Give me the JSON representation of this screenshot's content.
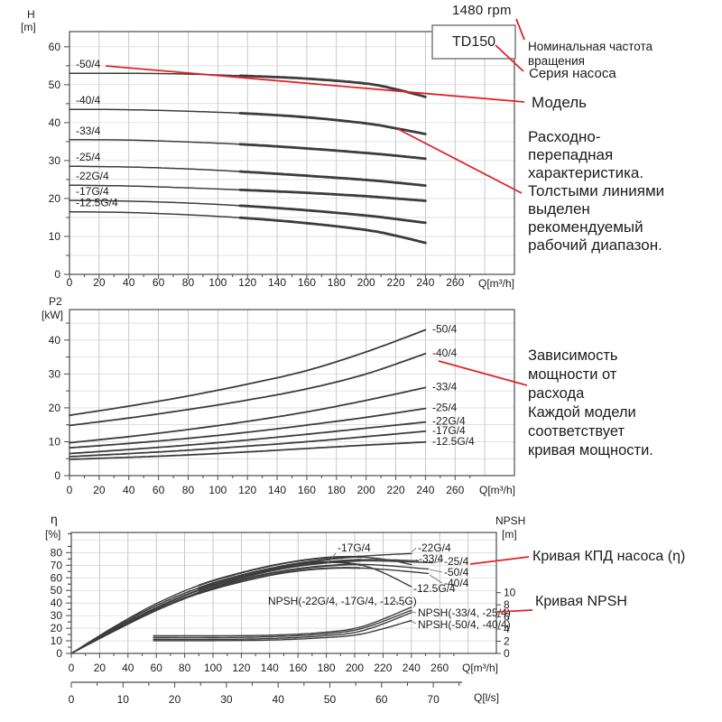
{
  "colors": {
    "accent": "#e02228",
    "curve": "#3c3c3c",
    "grid_v": "#bbbbbb",
    "grid_h": "#cfcfcf",
    "axis": "#4a4a4a",
    "text": "#1c1c1c",
    "box_border": "#7a7a7a"
  },
  "header": {
    "rpm": "1480 rpm",
    "series_box": "TD150"
  },
  "annotations": {
    "rpm_note": "Номинальная частота\nвращения",
    "series_note": "Серия насоса",
    "model_note": "Модель",
    "hq_note": "Расходно-\nперепадная\nхарактеристика.\nТолстыми линиями\nвыделен\nрекомендуемый\nрабочий диапазон.",
    "power_note": "Зависимость\nмощности от\nрасхода\nКаждой модели\nсоответствует\nкривая мощности.",
    "eff_note": "Кривая КПД насоса (η)",
    "npsh_note": "Кривая NPSH"
  },
  "chart_data": [
    {
      "id": "head-flow",
      "type": "line",
      "ylabel": "H",
      "y_unit": "[m]",
      "xlabel": "Q[m³/h]",
      "xlim": [
        0,
        300
      ],
      "ylim": [
        0,
        64
      ],
      "xticks": [
        0,
        20,
        40,
        60,
        80,
        100,
        120,
        140,
        160,
        180,
        200,
        220,
        240,
        260
      ],
      "yticks": [
        0,
        10,
        20,
        30,
        40,
        50,
        60
      ],
      "grid": true,
      "thick_q_range": [
        115,
        240
      ],
      "series": [
        {
          "name": "-50/4",
          "x": [
            0,
            40,
            80,
            120,
            160,
            200,
            220,
            240
          ],
          "y": [
            53,
            53,
            52.8,
            52.3,
            51.6,
            50.3,
            48.8,
            46.8
          ]
        },
        {
          "name": "-40/4",
          "x": [
            0,
            40,
            80,
            120,
            160,
            200,
            220,
            240
          ],
          "y": [
            43.5,
            43.4,
            43.0,
            42.4,
            41.4,
            39.8,
            38.5,
            37.0
          ]
        },
        {
          "name": "-33/4",
          "x": [
            0,
            40,
            80,
            120,
            160,
            200,
            220,
            240
          ],
          "y": [
            35.5,
            35.4,
            34.9,
            34.2,
            33.2,
            32.0,
            31.3,
            30.5
          ]
        },
        {
          "name": "-25/4",
          "x": [
            0,
            40,
            80,
            120,
            160,
            200,
            220,
            240
          ],
          "y": [
            28.5,
            28.3,
            27.8,
            27.0,
            26.0,
            24.9,
            24.2,
            23.4
          ]
        },
        {
          "name": "-22G/4",
          "x": [
            0,
            40,
            80,
            120,
            160,
            200,
            220,
            240
          ],
          "y": [
            23.5,
            23.3,
            22.8,
            22.2,
            21.5,
            20.6,
            20.0,
            19.4
          ]
        },
        {
          "name": "-17G/4",
          "x": [
            0,
            40,
            80,
            120,
            160,
            200,
            220,
            240
          ],
          "y": [
            19.5,
            19.3,
            18.8,
            18.0,
            16.9,
            15.5,
            14.6,
            13.6
          ]
        },
        {
          "name": "-12.5G/4",
          "x": [
            0,
            40,
            80,
            120,
            160,
            200,
            220,
            240
          ],
          "y": [
            16.5,
            16.3,
            15.7,
            14.8,
            13.5,
            11.7,
            10.2,
            8.3
          ]
        }
      ]
    },
    {
      "id": "power-flow",
      "type": "line",
      "ylabel": "P2",
      "y_unit": "[kW]",
      "xlabel": "Q[m³/h]",
      "xlim": [
        0,
        300
      ],
      "ylim": [
        0,
        49
      ],
      "xticks": [
        0,
        20,
        40,
        60,
        80,
        100,
        120,
        140,
        160,
        180,
        200,
        220,
        240,
        260
      ],
      "yticks": [
        0,
        10,
        20,
        30,
        40
      ],
      "grid": true,
      "series": [
        {
          "name": "-50/4",
          "x": [
            0,
            40,
            80,
            120,
            160,
            200,
            240
          ],
          "y": [
            17.8,
            20.5,
            23.5,
            27.0,
            31.0,
            36.5,
            43.0
          ]
        },
        {
          "name": "-40/4",
          "x": [
            0,
            40,
            80,
            120,
            160,
            200,
            240
          ],
          "y": [
            14.8,
            17.0,
            19.5,
            22.3,
            25.6,
            30.0,
            36.0
          ]
        },
        {
          "name": "-33/4",
          "x": [
            0,
            40,
            80,
            120,
            160,
            200,
            240
          ],
          "y": [
            9.7,
            11.5,
            13.6,
            16.0,
            18.8,
            22.2,
            26.0
          ]
        },
        {
          "name": "-25/4",
          "x": [
            0,
            40,
            80,
            120,
            160,
            200,
            240
          ],
          "y": [
            8.2,
            9.5,
            11.0,
            12.8,
            14.9,
            17.2,
            19.8
          ]
        },
        {
          "name": "-22G/4",
          "x": [
            0,
            40,
            80,
            120,
            160,
            200,
            240
          ],
          "y": [
            6.5,
            7.7,
            9.0,
            10.5,
            12.2,
            14.0,
            15.8
          ]
        },
        {
          "name": "-17G/4",
          "x": [
            0,
            40,
            80,
            120,
            160,
            200,
            240
          ],
          "y": [
            5.6,
            6.5,
            7.5,
            8.7,
            10.0,
            11.5,
            13.1
          ]
        },
        {
          "name": "-12.5G/4",
          "x": [
            0,
            40,
            80,
            120,
            160,
            200,
            240
          ],
          "y": [
            4.8,
            5.4,
            6.1,
            7.0,
            8.0,
            9.0,
            9.9
          ]
        }
      ]
    },
    {
      "id": "efficiency-npsh",
      "type": "line",
      "ylabel": "η",
      "y_unit": "[%]",
      "xlabel": "Q[m³/h]",
      "x2label": "Q[l/s]",
      "y2label": "NPSH",
      "y2_unit": "[m]",
      "xlim": [
        0,
        300
      ],
      "ylim": [
        0,
        96
      ],
      "y2lim": [
        0,
        19.9
      ],
      "x2lim": [
        0,
        82
      ],
      "xticks": [
        0,
        20,
        40,
        60,
        80,
        100,
        120,
        140,
        160,
        180,
        200,
        220,
        240,
        260
      ],
      "yticks": [
        0,
        10,
        20,
        30,
        40,
        50,
        60,
        70,
        80
      ],
      "x2ticks": [
        0,
        10,
        20,
        30,
        40,
        50,
        60,
        70
      ],
      "y2ticks": [
        0,
        2,
        4,
        6,
        8,
        10
      ],
      "grid": true,
      "series": [
        {
          "name": "-22G/4",
          "x": [
            0,
            30,
            60,
            90,
            120,
            150,
            180,
            210,
            240
          ],
          "y": [
            0,
            20,
            38,
            52,
            62,
            69.5,
            74.5,
            77.5,
            79.3
          ]
        },
        {
          "name": "-17G/4",
          "x": [
            0,
            30,
            60,
            90,
            120,
            150,
            180,
            205,
            225,
            240
          ],
          "y": [
            0,
            21,
            39.5,
            54,
            64,
            71.5,
            76,
            76.5,
            74,
            70.5
          ]
        },
        {
          "name": "-33/4",
          "x": [
            0,
            30,
            60,
            90,
            120,
            150,
            180,
            210,
            245
          ],
          "y": [
            0,
            19,
            36.5,
            50.5,
            60.5,
            68,
            72.5,
            74.5,
            73.5
          ]
        },
        {
          "name": "-25/4",
          "x": [
            0,
            30,
            60,
            90,
            120,
            150,
            180,
            210,
            255
          ],
          "y": [
            0,
            18.5,
            36,
            50,
            60,
            67.5,
            72,
            73.5,
            72
          ]
        },
        {
          "name": "-50/4",
          "x": [
            0,
            30,
            60,
            90,
            120,
            150,
            180,
            210,
            252
          ],
          "y": [
            0,
            18,
            35,
            48.5,
            58.5,
            65.5,
            69.5,
            70.5,
            67
          ]
        },
        {
          "name": "-40/4",
          "x": [
            0,
            30,
            60,
            90,
            120,
            150,
            180,
            210,
            252
          ],
          "y": [
            0,
            17.5,
            34,
            47.5,
            57,
            64,
            67.5,
            67.5,
            63.5
          ]
        },
        {
          "name": "-12.5G/4",
          "x": [
            0,
            30,
            60,
            90,
            120,
            150,
            180,
            210,
            240
          ],
          "y": [
            0,
            20,
            38,
            52,
            62,
            69,
            72.5,
            68.5,
            53
          ]
        }
      ],
      "npsh_series": [
        {
          "name": "NPSH(-22G/4, -17G/4, -12.5G)",
          "x": [
            58,
            100,
            140,
            175,
            205,
            240
          ],
          "y": [
            2.9,
            2.9,
            3.0,
            3.4,
            4.4,
            7.6
          ]
        },
        {
          "name": "NPSH(-22G/4, -17G/4, -12.5G)",
          "x": [
            58,
            100,
            140,
            175,
            205,
            240
          ],
          "y": [
            2.6,
            2.6,
            2.75,
            3.15,
            4.1,
            7.1
          ]
        },
        {
          "name": "NPSH(-33/4, -25/4)",
          "x": [
            58,
            100,
            140,
            175,
            205,
            240
          ],
          "y": [
            2.3,
            2.3,
            2.45,
            2.85,
            3.7,
            6.7
          ]
        },
        {
          "name": "NPSH(-50/4, -40/4)",
          "x": [
            58,
            100,
            140,
            175,
            205,
            240
          ],
          "y": [
            2.1,
            2.1,
            2.2,
            2.55,
            3.2,
            5.4
          ]
        }
      ]
    }
  ]
}
